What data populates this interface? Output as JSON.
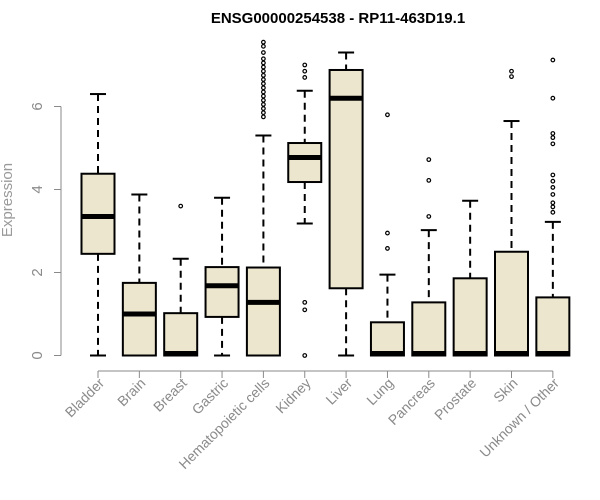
{
  "chart_data": {
    "type": "boxplot",
    "title": "ENSG00000254538 - RP11-463D19.1",
    "xlabel": "",
    "ylabel": "Expression",
    "ylim": [
      0,
      7.6
    ],
    "yticks": [
      0,
      2,
      4,
      6
    ],
    "grid": false,
    "box_fill": "#ede6cf",
    "categories": [
      "Bladder",
      "Brain",
      "Breast",
      "Gastric",
      "Hematopoietic cells",
      "Kidney",
      "Liver",
      "Lung",
      "Pancreas",
      "Prostate",
      "Skin",
      "Unknown / Other"
    ],
    "boxes": [
      {
        "whisker_low": 0,
        "q1": 2.45,
        "median": 3.35,
        "q3": 4.38,
        "whisker_high": 6.3,
        "outliers": []
      },
      {
        "whisker_low": 0,
        "q1": 0,
        "median": 1.0,
        "q3": 1.75,
        "whisker_high": 3.88,
        "outliers": []
      },
      {
        "whisker_low": 0,
        "q1": 0,
        "median": 0.02,
        "q3": 1.02,
        "whisker_high": 2.33,
        "outliers": [
          3.6
        ]
      },
      {
        "whisker_low": 0,
        "q1": 0.93,
        "median": 1.68,
        "q3": 2.13,
        "whisker_high": 3.8,
        "outliers": []
      },
      {
        "whisker_low": 0,
        "q1": 0,
        "median": 1.28,
        "q3": 2.12,
        "whisker_high": 5.3,
        "outliers": [
          5.75,
          5.85,
          5.95,
          6.05,
          6.15,
          6.25,
          6.35,
          6.45,
          6.55,
          6.65,
          6.75,
          6.85,
          6.95,
          7.05,
          7.15,
          7.3,
          7.45,
          7.55
        ]
      },
      {
        "whisker_low": 3.18,
        "q1": 4.18,
        "median": 4.77,
        "q3": 5.12,
        "whisker_high": 6.38,
        "outliers": [
          0,
          1.1,
          1.28,
          6.7,
          6.85,
          7.0
        ]
      },
      {
        "whisker_low": 0,
        "q1": 1.62,
        "median": 6.2,
        "q3": 6.88,
        "whisker_high": 7.3,
        "outliers": []
      },
      {
        "whisker_low": 0,
        "q1": 0,
        "median": 0.02,
        "q3": 0.8,
        "whisker_high": 1.95,
        "outliers": [
          2.58,
          2.95,
          5.8
        ]
      },
      {
        "whisker_low": 0,
        "q1": 0,
        "median": 0.02,
        "q3": 1.28,
        "whisker_high": 3.02,
        "outliers": [
          3.35,
          4.22,
          4.72
        ]
      },
      {
        "whisker_low": 0,
        "q1": 0,
        "median": 0.02,
        "q3": 1.86,
        "whisker_high": 3.73,
        "outliers": []
      },
      {
        "whisker_low": 0,
        "q1": 0,
        "median": 0.02,
        "q3": 2.5,
        "whisker_high": 5.65,
        "outliers": [
          6.72,
          6.85
        ]
      },
      {
        "whisker_low": 0,
        "q1": 0,
        "median": 0.02,
        "q3": 1.4,
        "whisker_high": 3.22,
        "outliers": [
          3.45,
          3.58,
          3.68,
          3.88,
          4.05,
          4.2,
          4.35,
          5.1,
          5.25,
          5.35,
          6.2,
          7.12
        ]
      }
    ]
  }
}
